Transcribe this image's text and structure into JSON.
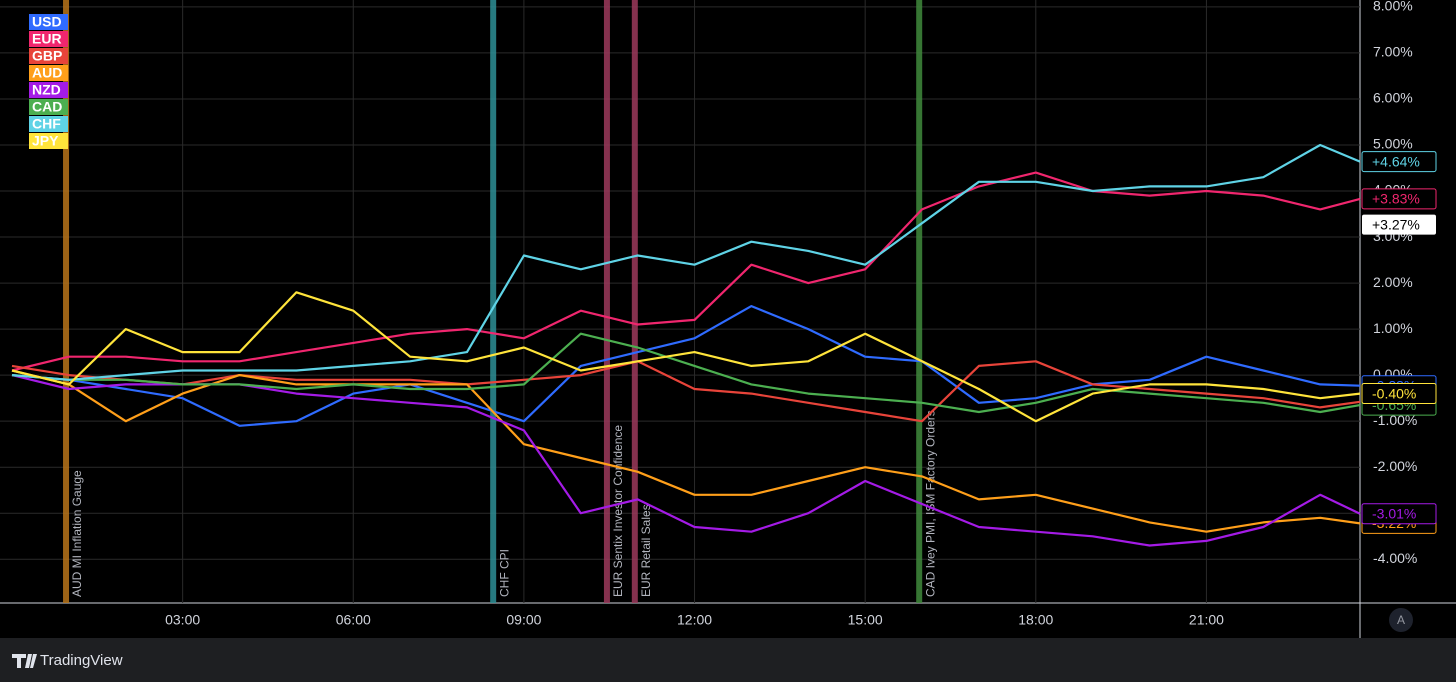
{
  "chart_data": {
    "type": "line",
    "brand": "TradingView",
    "scale_button": "A",
    "x": [
      0,
      1,
      2,
      3,
      4,
      5,
      6,
      7,
      8,
      9,
      10,
      11,
      12,
      13,
      14,
      15,
      16,
      17,
      18,
      19,
      20,
      21,
      22,
      23,
      23.7
    ],
    "xlim": [
      0,
      23.7
    ],
    "xticks": [
      {
        "value": 3,
        "label": "03:00"
      },
      {
        "value": 6,
        "label": "06:00"
      },
      {
        "value": 9,
        "label": "09:00"
      },
      {
        "value": 12,
        "label": "12:00"
      },
      {
        "value": 15,
        "label": "15:00"
      },
      {
        "value": 18,
        "label": "18:00"
      },
      {
        "value": 21,
        "label": "21:00"
      }
    ],
    "ylim": [
      -4.95,
      8.15
    ],
    "yticks": [
      {
        "value": 8,
        "label": "8.00%"
      },
      {
        "value": 7,
        "label": "7.00%"
      },
      {
        "value": 6,
        "label": "6.00%"
      },
      {
        "value": 5,
        "label": "5.00%"
      },
      {
        "value": 4,
        "label": "4.00%"
      },
      {
        "value": 3,
        "label": "3.00%"
      },
      {
        "value": 2,
        "label": "2.00%"
      },
      {
        "value": 1,
        "label": "1.00%"
      },
      {
        "value": 0,
        "label": "0.00%"
      },
      {
        "value": -1,
        "label": "-1.00%"
      },
      {
        "value": -2,
        "label": "-2.00%"
      },
      {
        "value": -3,
        "label": "-3.00%"
      },
      {
        "value": -4,
        "label": "-4.00%"
      }
    ],
    "grid": true,
    "marker": {
      "value": 3.27,
      "label": "+3.27%"
    },
    "events": [
      {
        "x": 0.95,
        "label": "AUD MI Inflation Gauge",
        "color": "#b8741a"
      },
      {
        "x": 8.46,
        "label": "CHF CPI",
        "color": "#2e8f96"
      },
      {
        "x": 10.46,
        "label": "EUR Sentix Investor Confidence",
        "color": "#9c3a5c"
      },
      {
        "x": 10.95,
        "label": "EUR Retail Sales",
        "color": "#9c3a5c"
      },
      {
        "x": 15.95,
        "label": "CAD Ivey PMI, ISM Factory Orders",
        "color": "#3f8a3c"
      }
    ],
    "series": [
      {
        "name": "USD",
        "color": "#2f6bff",
        "values": [
          0,
          -0.1,
          -0.3,
          -0.5,
          -1.1,
          -1.0,
          -0.4,
          -0.2,
          -0.6,
          -1.0,
          0.2,
          0.5,
          0.8,
          1.5,
          1.0,
          0.4,
          0.3,
          -0.6,
          -0.5,
          -0.2,
          -0.1,
          0.4,
          0.1,
          -0.2,
          -0.23
        ],
        "last_label": "-0.23%"
      },
      {
        "name": "EUR",
        "color": "#f0266e",
        "values": [
          0.1,
          0.4,
          0.4,
          0.3,
          0.3,
          0.5,
          0.7,
          0.9,
          1.0,
          0.8,
          1.4,
          1.1,
          1.2,
          2.4,
          2.0,
          2.3,
          3.6,
          4.1,
          4.4,
          4.0,
          3.9,
          4.0,
          3.9,
          3.6,
          3.83
        ],
        "last_label": "+3.83%"
      },
      {
        "name": "GBP",
        "color": "#e8443a",
        "values": [
          0.2,
          0,
          -0.1,
          -0.2,
          0,
          -0.1,
          -0.1,
          -0.1,
          -0.2,
          -0.1,
          0,
          0.3,
          -0.3,
          -0.4,
          -0.6,
          -0.8,
          -1.0,
          0.2,
          0.3,
          -0.2,
          -0.3,
          -0.4,
          -0.5,
          -0.7,
          -0.58
        ],
        "last_label": "-0.58%"
      },
      {
        "name": "AUD",
        "color": "#ff9f1a",
        "values": [
          0.1,
          -0.2,
          -1.0,
          -0.4,
          0,
          -0.2,
          -0.2,
          -0.2,
          -0.2,
          -1.5,
          -1.8,
          -2.1,
          -2.6,
          -2.6,
          -2.3,
          -2.0,
          -2.2,
          -2.7,
          -2.6,
          -2.9,
          -3.2,
          -3.4,
          -3.2,
          -3.1,
          -3.22
        ],
        "last_label": "-3.22%"
      },
      {
        "name": "NZD",
        "color": "#a41be6",
        "values": [
          0,
          -0.3,
          -0.2,
          -0.2,
          -0.2,
          -0.4,
          -0.5,
          -0.6,
          -0.7,
          -1.2,
          -3.0,
          -2.7,
          -3.3,
          -3.4,
          -3.0,
          -2.3,
          -2.8,
          -3.3,
          -3.4,
          -3.5,
          -3.7,
          -3.6,
          -3.3,
          -2.6,
          -3.01
        ],
        "last_label": "-3.01%"
      },
      {
        "name": "CAD",
        "color": "#4caf50",
        "values": [
          0,
          -0.1,
          -0.1,
          -0.2,
          -0.2,
          -0.3,
          -0.2,
          -0.3,
          -0.3,
          -0.2,
          0.9,
          0.6,
          0.2,
          -0.2,
          -0.4,
          -0.5,
          -0.6,
          -0.8,
          -0.6,
          -0.3,
          -0.4,
          -0.5,
          -0.6,
          -0.8,
          -0.65
        ],
        "last_label": "-0.65%"
      },
      {
        "name": "CHF",
        "color": "#5fd3e6",
        "values": [
          0,
          -0.1,
          0,
          0.1,
          0.1,
          0.1,
          0.2,
          0.3,
          0.5,
          2.6,
          2.3,
          2.6,
          2.4,
          2.9,
          2.7,
          2.4,
          3.3,
          4.2,
          4.2,
          4.0,
          4.1,
          4.1,
          4.3,
          5.0,
          4.64
        ],
        "last_label": "+4.64%"
      },
      {
        "name": "JPY",
        "color": "#ffe43b",
        "values": [
          0.1,
          -0.2,
          1.0,
          0.5,
          0.5,
          1.8,
          1.4,
          0.4,
          0.3,
          0.6,
          0.1,
          0.3,
          0.5,
          0.2,
          0.3,
          0.9,
          0.3,
          -0.3,
          -1.0,
          -0.4,
          -0.2,
          -0.2,
          -0.3,
          -0.5,
          -0.4
        ],
        "last_label": "-0.40%"
      }
    ]
  }
}
